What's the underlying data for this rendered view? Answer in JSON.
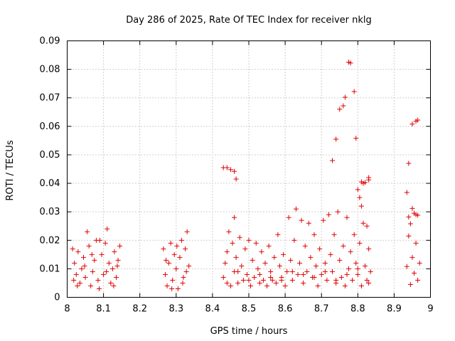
{
  "chart_data": {
    "type": "scatter",
    "title": "Day 286 of 2025, Rate Of TEC Index for receiver nklg",
    "xlabel": "GPS time / hours",
    "ylabel": "ROTI / TECUs",
    "xlim": [
      8,
      9
    ],
    "ylim": [
      0,
      0.09
    ],
    "xticks": [
      "8",
      "8.1",
      "8.2",
      "8.3",
      "8.4",
      "8.5",
      "8.6",
      "8.7",
      "8.8",
      "8.9",
      "9"
    ],
    "yticks": [
      "0",
      "0.01",
      "0.02",
      "0.03",
      "0.04",
      "0.05",
      "0.06",
      "0.07",
      "0.08",
      "0.09"
    ],
    "grid": true,
    "marker": "+",
    "color": "#e00000",
    "series": [
      {
        "name": "ROTI",
        "points": [
          [
            8.015,
            0.017
          ],
          [
            8.02,
            0.012
          ],
          [
            8.025,
            0.008
          ],
          [
            8.03,
            0.016
          ],
          [
            8.035,
            0.005
          ],
          [
            8.04,
            0.01
          ],
          [
            8.045,
            0.014
          ],
          [
            8.05,
            0.007
          ],
          [
            8.055,
            0.023
          ],
          [
            8.06,
            0.018
          ],
          [
            8.065,
            0.004
          ],
          [
            8.07,
            0.009
          ],
          [
            8.075,
            0.013
          ],
          [
            8.08,
            0.02
          ],
          [
            8.085,
            0.006
          ],
          [
            8.09,
            0.02
          ],
          [
            8.095,
            0.015
          ],
          [
            8.1,
            0.008
          ],
          [
            8.105,
            0.019
          ],
          [
            8.11,
            0.024
          ],
          [
            8.115,
            0.012
          ],
          [
            8.12,
            0.005
          ],
          [
            8.125,
            0.01
          ],
          [
            8.13,
            0.016
          ],
          [
            8.135,
            0.007
          ],
          [
            8.14,
            0.013
          ],
          [
            8.145,
            0.018
          ],
          [
            8.018,
            0.006
          ],
          [
            8.028,
            0.004
          ],
          [
            8.048,
            0.011
          ],
          [
            8.068,
            0.015
          ],
          [
            8.088,
            0.003
          ],
          [
            8.108,
            0.009
          ],
          [
            8.128,
            0.004
          ],
          [
            8.138,
            0.011
          ],
          [
            8.265,
            0.017
          ],
          [
            8.27,
            0.008
          ],
          [
            8.275,
            0.004
          ],
          [
            8.28,
            0.012
          ],
          [
            8.285,
            0.019
          ],
          [
            8.29,
            0.006
          ],
          [
            8.295,
            0.015
          ],
          [
            8.3,
            0.01
          ],
          [
            8.305,
            0.003
          ],
          [
            8.31,
            0.014
          ],
          [
            8.315,
            0.02
          ],
          [
            8.32,
            0.007
          ],
          [
            8.325,
            0.017
          ],
          [
            8.33,
            0.023
          ],
          [
            8.335,
            0.011
          ],
          [
            8.272,
            0.013
          ],
          [
            8.288,
            0.003
          ],
          [
            8.302,
            0.018
          ],
          [
            8.318,
            0.005
          ],
          [
            8.328,
            0.009
          ],
          [
            8.43,
            0.0455
          ],
          [
            8.44,
            0.0455
          ],
          [
            8.45,
            0.0448
          ],
          [
            8.46,
            0.0442
          ],
          [
            8.465,
            0.0415
          ],
          [
            8.46,
            0.028
          ],
          [
            8.43,
            0.007
          ],
          [
            8.435,
            0.012
          ],
          [
            8.44,
            0.016
          ],
          [
            8.445,
            0.023
          ],
          [
            8.45,
            0.004
          ],
          [
            8.455,
            0.019
          ],
          [
            8.46,
            0.009
          ],
          [
            8.465,
            0.014
          ],
          [
            8.47,
            0.005
          ],
          [
            8.475,
            0.021
          ],
          [
            8.48,
            0.011
          ],
          [
            8.485,
            0.006
          ],
          [
            8.49,
            0.017
          ],
          [
            8.495,
            0.008
          ],
          [
            8.5,
            0.02
          ],
          [
            8.505,
            0.004
          ],
          [
            8.51,
            0.013
          ],
          [
            8.515,
            0.007
          ],
          [
            8.52,
            0.019
          ],
          [
            8.525,
            0.01
          ],
          [
            8.53,
            0.005
          ],
          [
            8.535,
            0.016
          ],
          [
            8.54,
            0.006
          ],
          [
            8.545,
            0.012
          ],
          [
            8.55,
            0.004
          ],
          [
            8.555,
            0.018
          ],
          [
            8.56,
            0.009
          ],
          [
            8.565,
            0.006
          ],
          [
            8.57,
            0.014
          ],
          [
            8.575,
            0.005
          ],
          [
            8.58,
            0.022
          ],
          [
            8.585,
            0.011
          ],
          [
            8.59,
            0.007
          ],
          [
            8.595,
            0.015
          ],
          [
            8.6,
            0.004
          ],
          [
            8.605,
            0.009
          ],
          [
            8.61,
            0.028
          ],
          [
            8.615,
            0.013
          ],
          [
            8.62,
            0.006
          ],
          [
            8.625,
            0.02
          ],
          [
            8.63,
            0.031
          ],
          [
            8.635,
            0.008
          ],
          [
            8.64,
            0.012
          ],
          [
            8.645,
            0.027
          ],
          [
            8.65,
            0.005
          ],
          [
            8.655,
            0.018
          ],
          [
            8.66,
            0.009
          ],
          [
            8.665,
            0.026
          ],
          [
            8.67,
            0.014
          ],
          [
            8.675,
            0.007
          ],
          [
            8.68,
            0.022
          ],
          [
            8.685,
            0.011
          ],
          [
            8.69,
            0.004
          ],
          [
            8.695,
            0.017
          ],
          [
            8.7,
            0.008
          ],
          [
            8.705,
            0.027
          ],
          [
            8.71,
            0.012
          ],
          [
            8.715,
            0.006
          ],
          [
            8.72,
            0.029
          ],
          [
            8.725,
            0.015
          ],
          [
            8.73,
            0.009
          ],
          [
            8.735,
            0.022
          ],
          [
            8.74,
            0.005
          ],
          [
            8.745,
            0.03
          ],
          [
            8.75,
            0.013
          ],
          [
            8.755,
            0.007
          ],
          [
            8.76,
            0.018
          ],
          [
            8.765,
            0.004
          ],
          [
            8.77,
            0.028
          ],
          [
            8.775,
            0.01
          ],
          [
            8.78,
            0.016
          ],
          [
            8.785,
            0.006
          ],
          [
            8.79,
            0.022
          ],
          [
            8.795,
            0.012
          ],
          [
            8.8,
            0.008
          ],
          [
            8.805,
            0.019
          ],
          [
            8.81,
            0.004
          ],
          [
            8.815,
            0.026
          ],
          [
            8.82,
            0.011
          ],
          [
            8.825,
            0.006
          ],
          [
            8.83,
            0.017
          ],
          [
            8.835,
            0.009
          ],
          [
            8.44,
            0.005
          ],
          [
            8.47,
            0.009
          ],
          [
            8.5,
            0.006
          ],
          [
            8.53,
            0.008
          ],
          [
            8.56,
            0.007
          ],
          [
            8.59,
            0.006
          ],
          [
            8.62,
            0.009
          ],
          [
            8.65,
            0.008
          ],
          [
            8.68,
            0.007
          ],
          [
            8.71,
            0.009
          ],
          [
            8.74,
            0.006
          ],
          [
            8.77,
            0.008
          ],
          [
            8.8,
            0.01
          ],
          [
            8.83,
            0.005
          ],
          [
            8.73,
            0.048
          ],
          [
            8.74,
            0.0555
          ],
          [
            8.75,
            0.066
          ],
          [
            8.76,
            0.0672
          ],
          [
            8.765,
            0.0702
          ],
          [
            8.775,
            0.0825
          ],
          [
            8.78,
            0.0822
          ],
          [
            8.79,
            0.0722
          ],
          [
            8.795,
            0.0558
          ],
          [
            8.8,
            0.0378
          ],
          [
            8.805,
            0.035
          ],
          [
            8.81,
            0.0405
          ],
          [
            8.815,
            0.04
          ],
          [
            8.82,
            0.0403
          ],
          [
            8.83,
            0.0412
          ],
          [
            8.83,
            0.042
          ],
          [
            8.825,
            0.025
          ],
          [
            8.81,
            0.032
          ],
          [
            8.935,
            0.0108
          ],
          [
            8.94,
            0.0215
          ],
          [
            8.945,
            0.0045
          ],
          [
            8.95,
            0.014
          ],
          [
            8.955,
            0.0085
          ],
          [
            8.96,
            0.019
          ],
          [
            8.965,
            0.006
          ],
          [
            8.97,
            0.012
          ],
          [
            8.94,
            0.0282
          ],
          [
            8.945,
            0.0258
          ],
          [
            8.95,
            0.0312
          ],
          [
            8.955,
            0.0295
          ],
          [
            8.96,
            0.029
          ],
          [
            8.965,
            0.0288
          ],
          [
            8.935,
            0.0368
          ],
          [
            8.94,
            0.047
          ],
          [
            8.95,
            0.0608
          ],
          [
            8.96,
            0.0618
          ],
          [
            8.965,
            0.0622
          ]
        ]
      }
    ]
  }
}
